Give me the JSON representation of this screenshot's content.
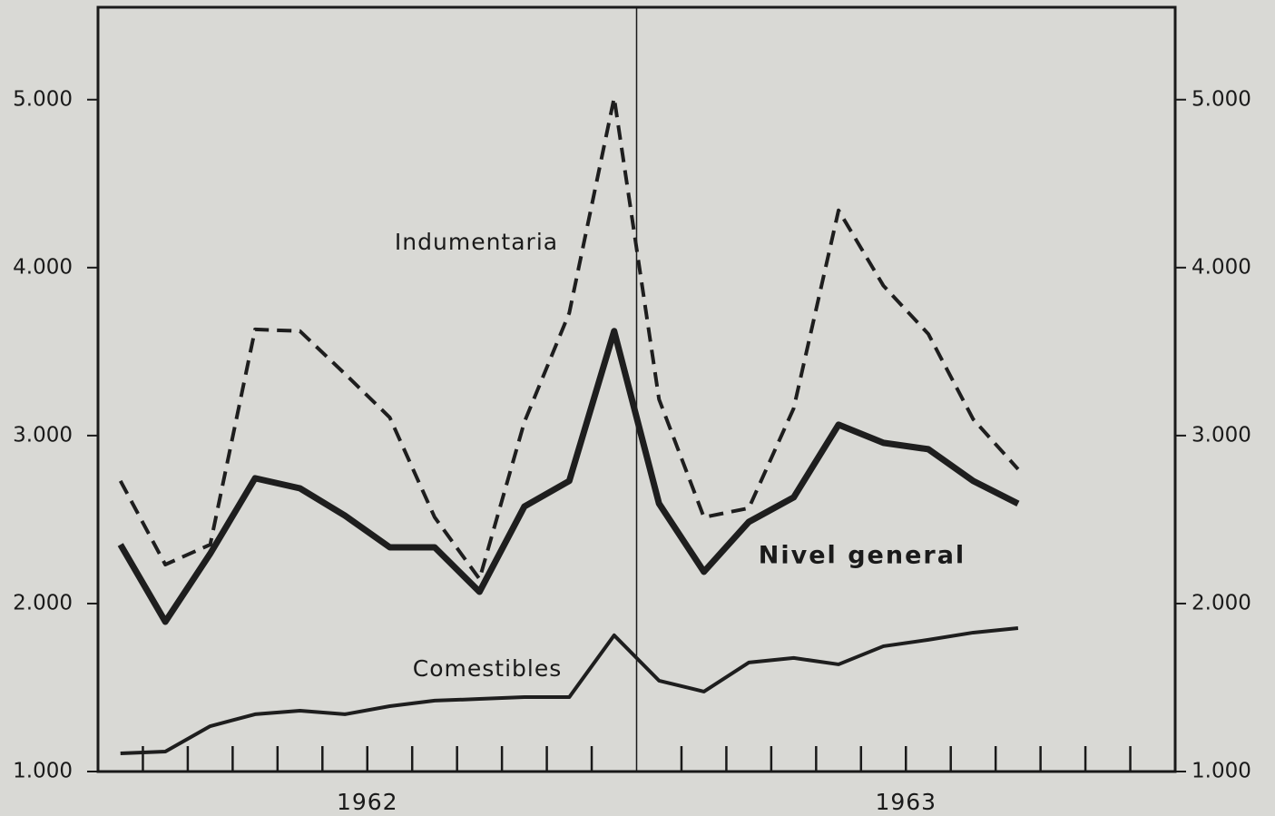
{
  "chart_data": {
    "type": "line",
    "categories": [
      null,
      null,
      null,
      null,
      null,
      null,
      null,
      null,
      null,
      null,
      null,
      null,
      null,
      null,
      null,
      null,
      null,
      null,
      null,
      null,
      null,
      null,
      null,
      null
    ],
    "year_labels": [
      "1962",
      "1963"
    ],
    "series": [
      {
        "name": "Indumentaria",
        "color": "#1e1e1e",
        "dashed": true,
        "values": [
          2730,
          2232,
          2351,
          3632,
          3622,
          3368,
          3108,
          2514,
          2146,
          3081,
          3730,
          5011,
          3216,
          2514,
          2568,
          3162,
          4341,
          3892,
          3605,
          3097,
          2800,
          null,
          null,
          null
        ]
      },
      {
        "name": "Nivel general",
        "color": "#1e1e1e",
        "dashed": false,
        "bold": true,
        "values": [
          2351,
          1892,
          2297,
          2746,
          2686,
          2524,
          2335,
          2335,
          2070,
          2578,
          2730,
          3622,
          2595,
          2189,
          2486,
          2632,
          3065,
          2957,
          2919,
          2730,
          2595,
          null,
          null,
          null
        ]
      },
      {
        "name": "Comestibles",
        "color": "#1e1e1e",
        "dashed": false,
        "values": [
          1108,
          1119,
          1270,
          1341,
          1362,
          1341,
          1389,
          1422,
          1432,
          1443,
          1443,
          1811,
          1541,
          1476,
          1649,
          1676,
          1638,
          1746,
          1784,
          1827,
          1854,
          null,
          null,
          null
        ]
      }
    ],
    "ylim": [
      1000,
      5550
    ],
    "yticks": [
      {
        "value": 1000,
        "label": "1.000"
      },
      {
        "value": 2000,
        "label": "2.000"
      },
      {
        "value": 3000,
        "label": "3.000"
      },
      {
        "value": 4000,
        "label": "4.000"
      },
      {
        "value": 5000,
        "label": "5.000"
      }
    ]
  }
}
